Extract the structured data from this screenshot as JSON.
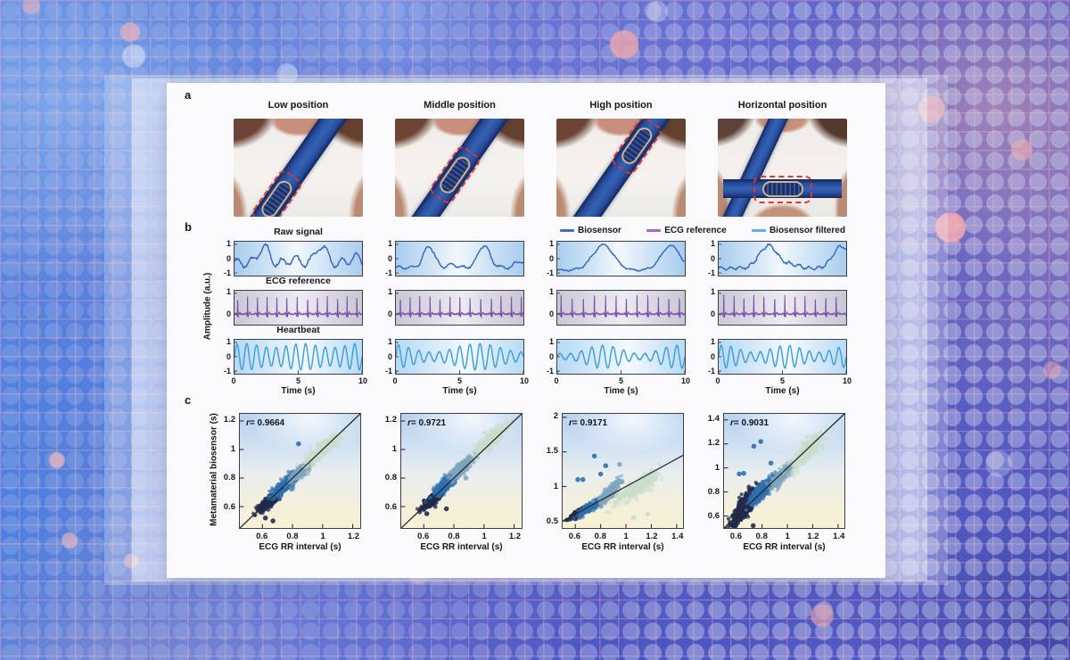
{
  "figure": {
    "panel_a": {
      "label": "a",
      "photos": [
        {
          "title": "Low position"
        },
        {
          "title": "Middle position"
        },
        {
          "title": "High position"
        },
        {
          "title": "Horizontal position"
        }
      ],
      "belt_color": "#2c54a6",
      "highlight_color": "#e23434"
    },
    "panel_b": {
      "label": "b",
      "ylabel": "Amplitude (a.u.)",
      "legend": [
        {
          "label": "Biosensor",
          "color": "#3f6db8"
        },
        {
          "label": "ECG reference",
          "color": "#9a6fc0"
        },
        {
          "label": "Biosensor filtered",
          "color": "#5fb0e8"
        }
      ]
    },
    "panel_c": {
      "label": "c",
      "ylabel": "Metamaterial biosensor (s)"
    }
  },
  "chart_data": {
    "timeseries": {
      "type": "line",
      "xlabel": "Time (s)",
      "xlim": [
        0,
        10
      ],
      "xticks": [
        0,
        5,
        10
      ],
      "rows": [
        {
          "key": "raw",
          "name": "Raw signal",
          "kind": "resp",
          "color": "#3a68ba",
          "bg": "bg-blue",
          "yticks": [
            1,
            0,
            -1
          ],
          "cols": [
            {
              "seed": 3,
              "base": -0.3,
              "peaks": [
                [
                  2.3,
                  1.15,
                  0.55
                ],
                [
                  6.8,
                  1.2,
                  0.6
                ],
                [
                  4.6,
                  0.3,
                  0.4
                ],
                [
                  9.4,
                  0.45,
                  0.45
                ]
              ],
              "ripple": [
                0.3,
                0.85,
                0.5
              ],
              "noise": 0.07
            },
            {
              "seed": 5,
              "base": -0.62,
              "peaks": [
                [
                  2.6,
                  1.5,
                  0.6
                ],
                [
                  6.9,
                  1.55,
                  0.65
                ],
                [
                  4.4,
                  0.22,
                  0.5
                ],
                [
                  9.7,
                  0.45,
                  0.5
                ]
              ],
              "ripple": [
                0.1,
                1.0,
                0.0
              ],
              "noise": 0.05
            },
            {
              "seed": 7,
              "base": -0.8,
              "peaks": [
                [
                  3.6,
                  1.75,
                  1.15
                ],
                [
                  8.9,
                  1.7,
                  1.05
                ]
              ],
              "ripple": [
                0.05,
                0.9,
                0.0
              ],
              "noise": 0.04
            },
            {
              "seed": 9,
              "base": -0.68,
              "peaks": [
                [
                  3.9,
                  1.6,
                  1.0
                ],
                [
                  9.6,
                  1.55,
                  0.9
                ],
                [
                  5.8,
                  0.25,
                  0.8
                ]
              ],
              "ripple": [
                0.09,
                1.3,
                0.3
              ],
              "noise": 0.06
            }
          ]
        },
        {
          "key": "ecg",
          "name": "ECG reference",
          "kind": "ecg",
          "color": "#7a50ab",
          "bg": "bg-gray",
          "yticks": [
            1,
            0
          ],
          "cols": [
            {
              "seed": 21,
              "start": 0.25,
              "interval": 0.78,
              "jitter": 0.05,
              "amp": 0.85
            },
            {
              "seed": 23,
              "start": 0.35,
              "interval": 0.8,
              "jitter": 0.05,
              "amp": 0.88
            },
            {
              "seed": 25,
              "start": 0.3,
              "interval": 0.85,
              "jitter": 0.06,
              "amp": 0.9
            },
            {
              "seed": 27,
              "start": 0.4,
              "interval": 0.82,
              "jitter": 0.05,
              "amp": 0.92
            }
          ]
        },
        {
          "key": "hb",
          "name": "Heartbeat",
          "kind": "hb",
          "color": "#41a0dc",
          "bg": "bg-lblue",
          "yticks": [
            1,
            0,
            -1
          ],
          "cols": [
            {
              "seed": 31,
              "f": 1.3,
              "a0": 0.78,
              "a1": 0.14,
              "fa": 0.22,
              "pa": 0.5
            },
            {
              "seed": 33,
              "f": 1.25,
              "a0": 0.62,
              "a1": 0.3,
              "fa": 0.14,
              "pa": 2.2
            },
            {
              "seed": 35,
              "f": 1.2,
              "a0": 0.5,
              "a1": 0.3,
              "fa": 0.17,
              "pa": 4.0
            },
            {
              "seed": 37,
              "f": 1.3,
              "a0": 0.55,
              "a1": 0.24,
              "fa": 0.2,
              "pa": 1.2
            }
          ]
        }
      ]
    },
    "scatter": {
      "type": "scatter",
      "xlabel": "ECG RR interval (s)",
      "cluster_colors": {
        "navy": "#202a4e",
        "blue": "#2e6fae",
        "steel": "#7fa6bd",
        "green": "#c9ddcc"
      },
      "plots": [
        {
          "seed": 101,
          "r_label": "r= 0.9664",
          "xlim": [
            0.45,
            1.25
          ],
          "ylim": [
            0.45,
            1.25
          ],
          "xticks": [
            0.6,
            0.8,
            1,
            1.2
          ],
          "yticks": [
            0.6,
            0.8,
            1,
            1.2
          ],
          "line": [
            0.45,
            0.45,
            1.25,
            1.25
          ],
          "clusters": [
            {
              "color": "navy",
              "cx": 0.645,
              "cy": 0.635,
              "sx": 0.034,
              "sy": 0.028,
              "n": 330,
              "op": 0.75
            },
            {
              "color": "blue",
              "cx": 0.755,
              "cy": 0.755,
              "sx": 0.04,
              "sy": 0.036,
              "n": 380,
              "op": 0.6
            },
            {
              "color": "steel",
              "cx": 0.855,
              "cy": 0.845,
              "sx": 0.033,
              "sy": 0.03,
              "n": 240,
              "op": 0.55
            },
            {
              "color": "green",
              "cx": 1.0,
              "cy": 1.0,
              "sx": 0.052,
              "sy": 0.044,
              "n": 300,
              "op": 0.5
            }
          ],
          "outliers": [
            {
              "x": 0.84,
              "y": 1.04,
              "color": "blue"
            },
            {
              "x": 0.62,
              "y": 0.52,
              "color": "navy"
            },
            {
              "x": 0.67,
              "y": 0.5,
              "color": "navy"
            }
          ]
        },
        {
          "seed": 102,
          "r_label": "r= 0.9721",
          "xlim": [
            0.45,
            1.25
          ],
          "ylim": [
            0.45,
            1.25
          ],
          "xticks": [
            0.6,
            0.8,
            1,
            1.2
          ],
          "yticks": [
            0.6,
            0.8,
            1,
            1.2
          ],
          "line": [
            0.45,
            0.45,
            1.25,
            1.25
          ],
          "clusters": [
            {
              "color": "navy",
              "cx": 0.665,
              "cy": 0.655,
              "sx": 0.032,
              "sy": 0.028,
              "n": 400,
              "op": 0.75
            },
            {
              "color": "blue",
              "cx": 0.755,
              "cy": 0.765,
              "sx": 0.04,
              "sy": 0.038,
              "n": 360,
              "op": 0.6
            },
            {
              "color": "steel",
              "cx": 0.855,
              "cy": 0.875,
              "sx": 0.036,
              "sy": 0.036,
              "n": 260,
              "op": 0.55
            },
            {
              "color": "green",
              "cx": 1.05,
              "cy": 1.08,
              "sx": 0.052,
              "sy": 0.046,
              "n": 300,
              "op": 0.5
            }
          ],
          "outliers": [
            {
              "x": 0.75,
              "y": 0.585,
              "color": "navy"
            },
            {
              "x": 0.62,
              "y": 0.55,
              "color": "navy"
            },
            {
              "x": 0.88,
              "y": 0.8,
              "color": "steel"
            }
          ]
        },
        {
          "seed": 103,
          "r_label": "r= 0.9171",
          "xlim": [
            0.5,
            1.45
          ],
          "ylim": [
            0.4,
            2.05
          ],
          "xticks": [
            0.6,
            0.8,
            1,
            1.2,
            1.4
          ],
          "yticks": [
            0.5,
            1,
            1.5,
            2
          ],
          "line": [
            0.5,
            0.5,
            1.45,
            1.45
          ],
          "clusters": [
            {
              "color": "navy",
              "cx": 0.635,
              "cy": 0.625,
              "sx": 0.03,
              "sy": 0.035,
              "n": 330,
              "op": 0.8
            },
            {
              "color": "blue",
              "cx": 0.72,
              "cy": 0.7,
              "sx": 0.04,
              "sy": 0.048,
              "n": 330,
              "op": 0.6
            },
            {
              "color": "steel",
              "cx": 0.875,
              "cy": 0.92,
              "sx": 0.042,
              "sy": 0.075,
              "n": 260,
              "op": 0.55
            },
            {
              "color": "green",
              "cx": 1.09,
              "cy": 1.0,
              "sx": 0.078,
              "sy": 0.095,
              "n": 340,
              "op": 0.5
            }
          ],
          "outliers": [
            {
              "x": 0.62,
              "y": 1.1,
              "color": "blue"
            },
            {
              "x": 0.66,
              "y": 1.1,
              "color": "blue"
            },
            {
              "x": 0.75,
              "y": 1.44,
              "color": "blue"
            },
            {
              "x": 0.84,
              "y": 1.3,
              "color": "blue"
            },
            {
              "x": 0.8,
              "y": 1.18,
              "color": "blue"
            },
            {
              "x": 0.95,
              "y": 1.32,
              "color": "steel"
            },
            {
              "x": 1.06,
              "y": 0.55,
              "color": "green"
            },
            {
              "x": 1.17,
              "y": 0.6,
              "color": "green"
            }
          ]
        },
        {
          "seed": 104,
          "r_label": "r= 0.9031",
          "xlim": [
            0.5,
            1.45
          ],
          "ylim": [
            0.5,
            1.45
          ],
          "xticks": [
            0.6,
            0.8,
            1,
            1.2,
            1.4
          ],
          "yticks": [
            0.6,
            0.8,
            1,
            1.2,
            1.4
          ],
          "line": [
            0.5,
            0.5,
            1.45,
            1.45
          ],
          "clusters": [
            {
              "color": "navy",
              "cx": 0.665,
              "cy": 0.68,
              "sx": 0.046,
              "sy": 0.062,
              "n": 620,
              "op": 0.8
            },
            {
              "color": "blue",
              "cx": 0.8,
              "cy": 0.81,
              "sx": 0.046,
              "sy": 0.05,
              "n": 380,
              "op": 0.6
            },
            {
              "color": "steel",
              "cx": 0.95,
              "cy": 0.93,
              "sx": 0.04,
              "sy": 0.046,
              "n": 190,
              "op": 0.55
            },
            {
              "color": "green",
              "cx": 1.16,
              "cy": 1.14,
              "sx": 0.062,
              "sy": 0.066,
              "n": 330,
              "op": 0.5
            }
          ],
          "outliers": [
            {
              "x": 0.62,
              "y": 0.95,
              "color": "blue"
            },
            {
              "x": 0.655,
              "y": 0.955,
              "color": "blue"
            },
            {
              "x": 0.79,
              "y": 1.22,
              "color": "blue"
            },
            {
              "x": 0.735,
              "y": 1.18,
              "color": "blue"
            },
            {
              "x": 0.87,
              "y": 1.04,
              "color": "blue"
            },
            {
              "x": 0.73,
              "y": 0.52,
              "color": "navy"
            }
          ]
        }
      ]
    }
  }
}
